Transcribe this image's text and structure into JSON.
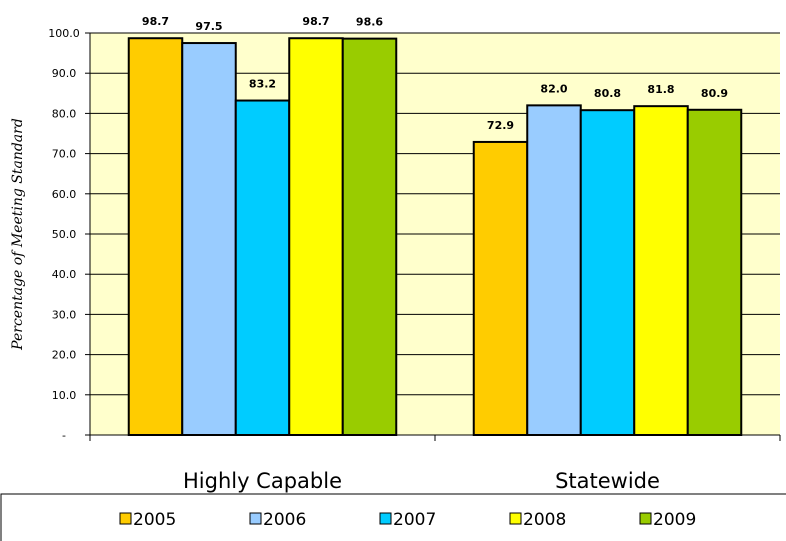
{
  "chart_data": {
    "type": "bar",
    "ylabel": "Percentage of Meeting Standard",
    "ylim": [
      0,
      100
    ],
    "yticks": [
      "-",
      "10.0",
      "20.0",
      "30.0",
      "40.0",
      "50.0",
      "60.0",
      "70.0",
      "80.0",
      "90.0",
      "100.0"
    ],
    "categories": [
      "Highly Capable",
      "Statewide"
    ],
    "grid": true,
    "legend_position": "bottom",
    "plot_background": "#FFFFCC",
    "series": [
      {
        "name": "2005",
        "color": "#FFCC00",
        "values": [
          98.7,
          72.9
        ],
        "labels": [
          "98.7",
          "72.9"
        ]
      },
      {
        "name": "2006",
        "color": "#99CCFF",
        "values": [
          97.5,
          82.0
        ],
        "labels": [
          "97.5",
          "82.0"
        ]
      },
      {
        "name": "2007",
        "color": "#00CCFF",
        "values": [
          83.2,
          80.8
        ],
        "labels": [
          "83.2",
          "80.8"
        ]
      },
      {
        "name": "2008",
        "color": "#FFFF00",
        "values": [
          98.7,
          81.8
        ],
        "labels": [
          "98.7",
          "81.8"
        ]
      },
      {
        "name": "2009",
        "color": "#99CC00",
        "values": [
          98.6,
          80.9
        ],
        "labels": [
          "98.6",
          "80.9"
        ]
      }
    ]
  }
}
